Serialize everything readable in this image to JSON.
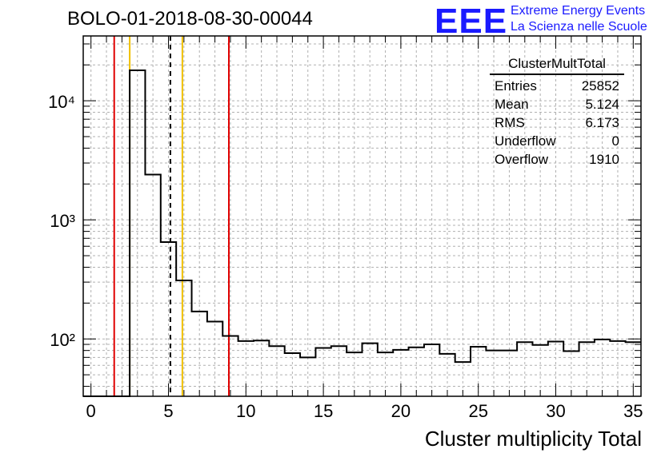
{
  "title": "BOLO-01-2018-08-30-00044",
  "logo": {
    "mark": "EEE",
    "line1": "Extreme Energy Events",
    "line2": "La Scienza nelle Scuole",
    "color": "#1a1aff"
  },
  "stats": {
    "name": "ClusterMultTotal",
    "rows": [
      {
        "label": "Entries",
        "value": "25852"
      },
      {
        "label": "Mean",
        "value": "5.124"
      },
      {
        "label": "RMS",
        "value": "6.173"
      },
      {
        "label": "Underflow",
        "value": "0"
      },
      {
        "label": "Overflow",
        "value": "1910"
      }
    ]
  },
  "chart_data": {
    "type": "histogram",
    "xlabel": "Cluster multiplicity Total",
    "ylabel": "",
    "xlim": [
      -0.5,
      35.5
    ],
    "ylim": [
      33,
      35000
    ],
    "yscale": "log",
    "grid": true,
    "x_ticks": [
      0,
      5,
      10,
      15,
      20,
      25,
      30,
      35
    ],
    "y_ticks": [
      100,
      1000,
      10000
    ],
    "y_tick_labels": [
      "10²",
      "10³",
      "10⁴"
    ],
    "bin_width": 1,
    "bins": [
      {
        "x": 0,
        "y": 0
      },
      {
        "x": 1,
        "y": 0
      },
      {
        "x": 2,
        "y": 0
      },
      {
        "x": 3,
        "y": 18000
      },
      {
        "x": 4,
        "y": 2400
      },
      {
        "x": 5,
        "y": 650
      },
      {
        "x": 6,
        "y": 310
      },
      {
        "x": 7,
        "y": 170
      },
      {
        "x": 8,
        "y": 140
      },
      {
        "x": 9,
        "y": 106
      },
      {
        "x": 10,
        "y": 96
      },
      {
        "x": 11,
        "y": 97
      },
      {
        "x": 12,
        "y": 87
      },
      {
        "x": 13,
        "y": 76
      },
      {
        "x": 14,
        "y": 70
      },
      {
        "x": 15,
        "y": 84
      },
      {
        "x": 16,
        "y": 87
      },
      {
        "x": 17,
        "y": 77
      },
      {
        "x": 18,
        "y": 92
      },
      {
        "x": 19,
        "y": 77
      },
      {
        "x": 20,
        "y": 81
      },
      {
        "x": 21,
        "y": 85
      },
      {
        "x": 22,
        "y": 90
      },
      {
        "x": 23,
        "y": 75
      },
      {
        "x": 24,
        "y": 64
      },
      {
        "x": 25,
        "y": 86
      },
      {
        "x": 26,
        "y": 80
      },
      {
        "x": 27,
        "y": 80
      },
      {
        "x": 28,
        "y": 94
      },
      {
        "x": 29,
        "y": 89
      },
      {
        "x": 30,
        "y": 95
      },
      {
        "x": 31,
        "y": 79
      },
      {
        "x": 32,
        "y": 94
      },
      {
        "x": 33,
        "y": 99
      },
      {
        "x": 34,
        "y": 96
      },
      {
        "x": 35,
        "y": 94
      }
    ],
    "vlines": [
      {
        "x": 1.5,
        "color": "#e00000",
        "style": "solid"
      },
      {
        "x": 2.5,
        "color": "#f0c000",
        "style": "solid"
      },
      {
        "x": 5.124,
        "color": "#000000",
        "style": "dashed"
      },
      {
        "x": 5.9,
        "color": "#f0c000",
        "style": "solid"
      },
      {
        "x": 8.9,
        "color": "#e00000",
        "style": "solid"
      }
    ]
  }
}
